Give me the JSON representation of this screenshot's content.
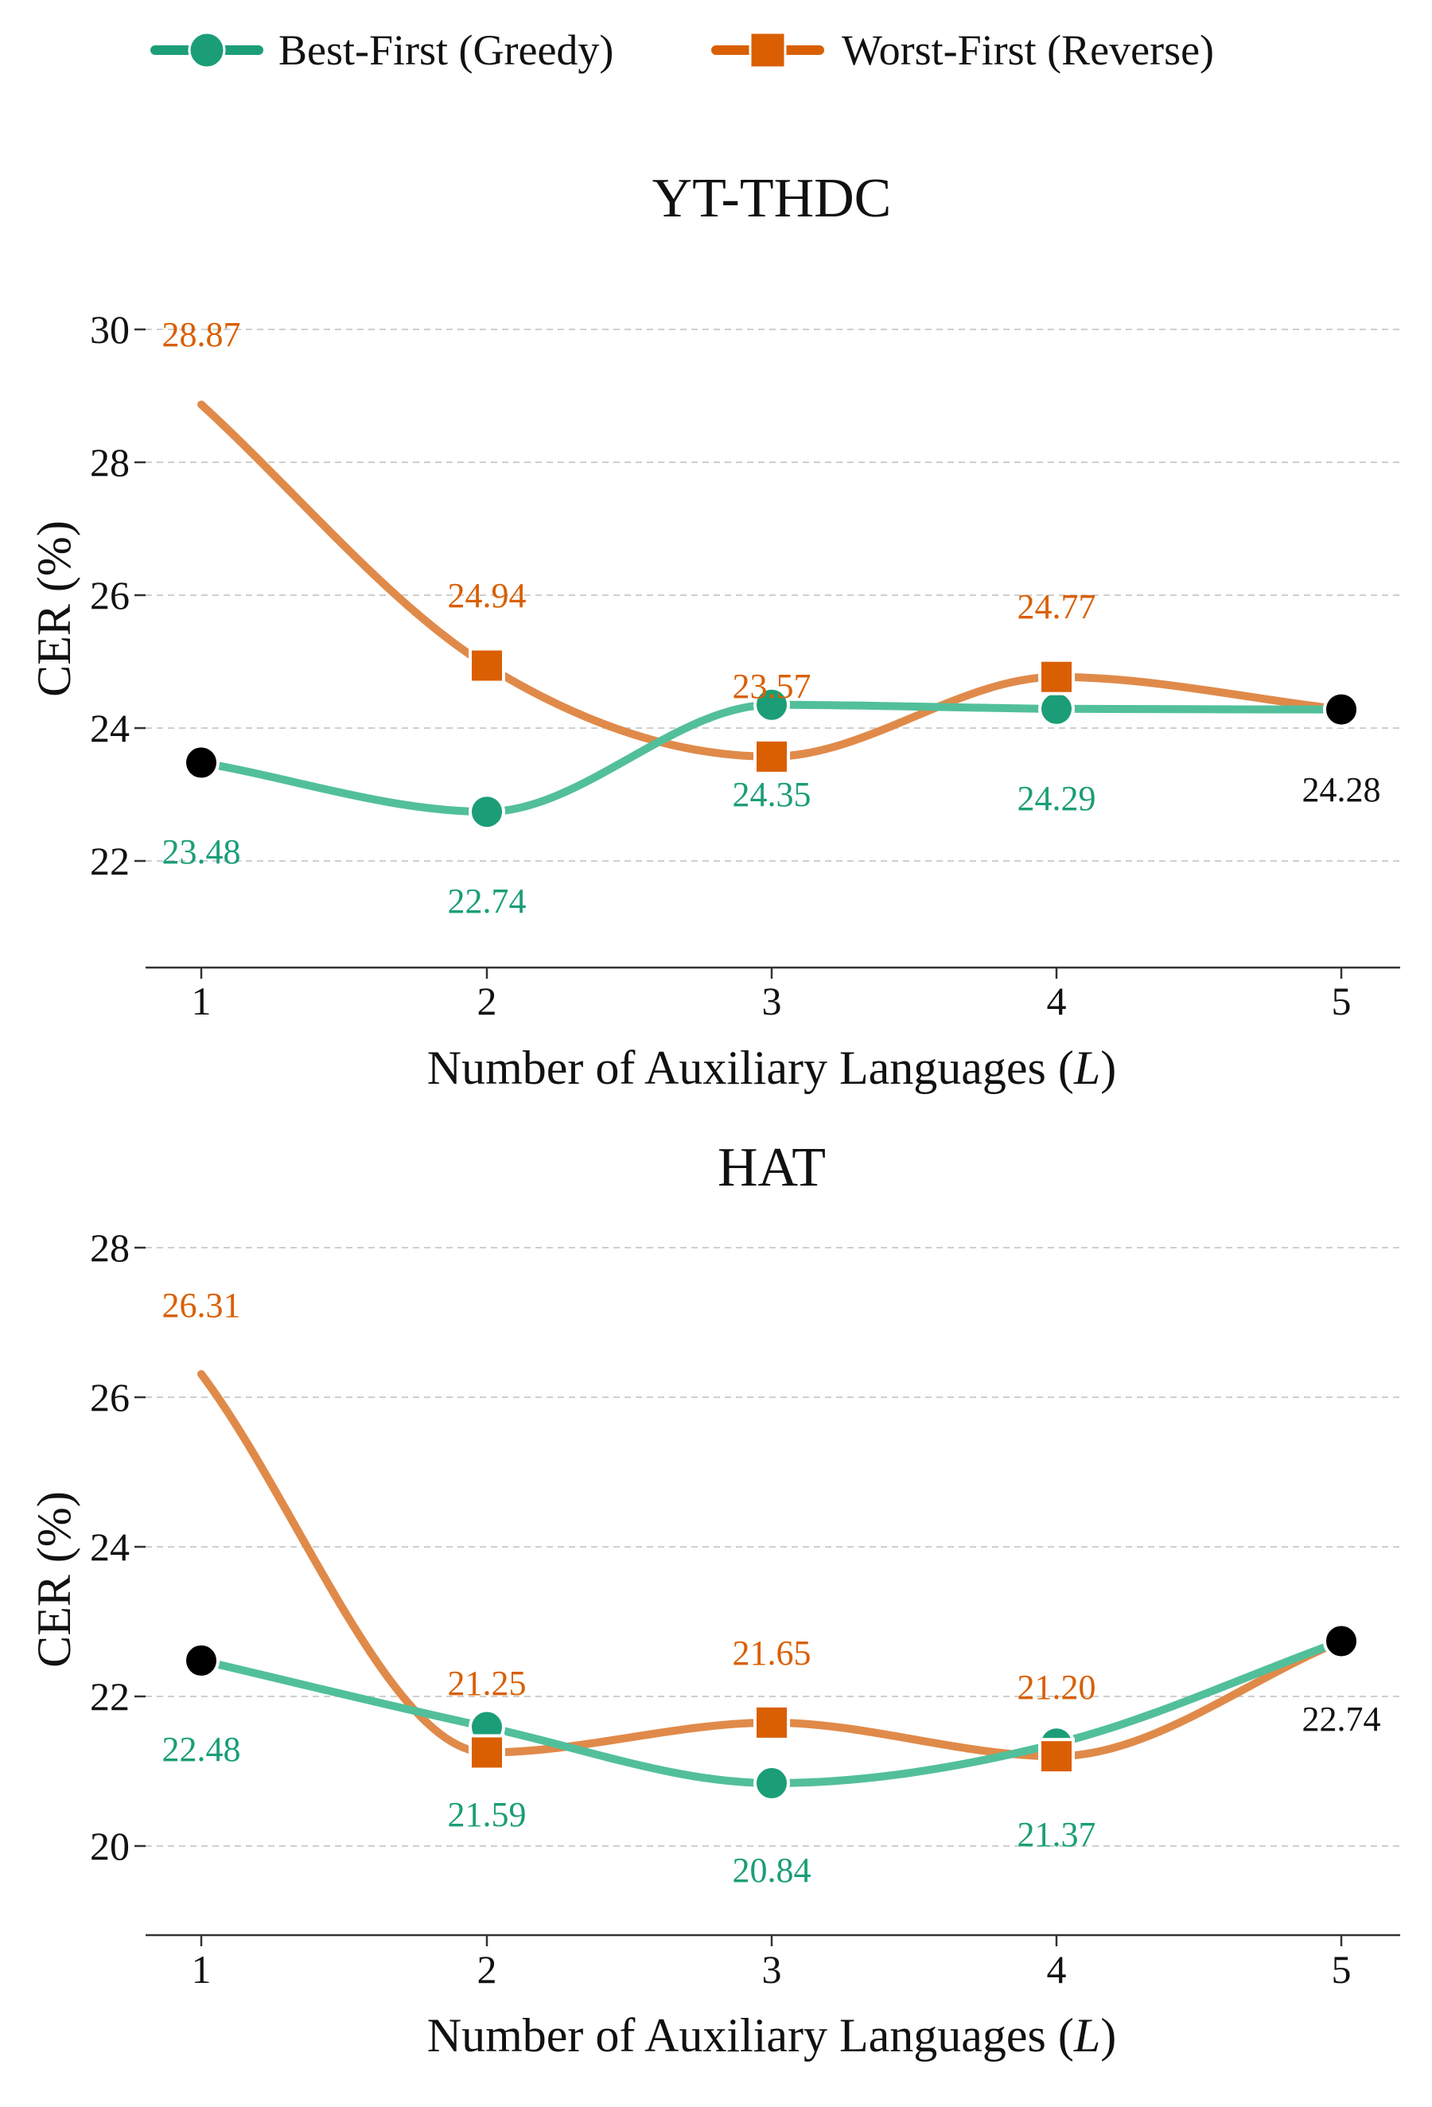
{
  "legend": {
    "position": "top-center",
    "items": [
      {
        "label": "Best-First (Greedy)",
        "marker": "circle",
        "color": "#1b9e77"
      },
      {
        "label": "Worst-First (Reverse)",
        "marker": "square",
        "color": "#d95f02"
      }
    ]
  },
  "colors": {
    "best_line": "#52bf9b",
    "best_text": "#1b9e77",
    "worst_line": "#e08a4a",
    "worst_text": "#d95f02",
    "endpoint": "#000000"
  },
  "chart_data": [
    {
      "type": "line",
      "title": "YT-THDC",
      "xlabel": "Number of Auxiliary Languages (L)",
      "ylabel": "CER (%)",
      "x": [
        1,
        2,
        3,
        4,
        5
      ],
      "xticks": [
        "1",
        "2",
        "3",
        "4",
        "5"
      ],
      "yticks": [
        22,
        24,
        26,
        28,
        30
      ],
      "ylim": [
        20.4,
        30
      ],
      "grid": "horizontal dashed",
      "series": [
        {
          "name": "Best-First (Greedy)",
          "values": [
            23.48,
            22.74,
            24.35,
            24.29,
            24.28
          ],
          "labels": [
            "23.48",
            "22.74",
            "24.35",
            "24.29",
            "24.28"
          ]
        },
        {
          "name": "Worst-First (Reverse)",
          "values": [
            28.87,
            24.94,
            23.57,
            24.77,
            24.28
          ],
          "labels": [
            "28.87",
            "24.94",
            "23.57",
            "24.77",
            ""
          ]
        }
      ]
    },
    {
      "type": "line",
      "title": "HAT",
      "xlabel": "Number of Auxiliary Languages (L)",
      "ylabel": "CER (%)",
      "x": [
        1,
        2,
        3,
        4,
        5
      ],
      "xticks": [
        "1",
        "2",
        "3",
        "4",
        "5"
      ],
      "yticks": [
        20,
        22,
        24,
        26,
        28
      ],
      "ylim": [
        18.8,
        28
      ],
      "grid": "horizontal dashed",
      "series": [
        {
          "name": "Best-First (Greedy)",
          "values": [
            22.48,
            21.59,
            20.84,
            21.37,
            22.74
          ],
          "labels": [
            "22.48",
            "21.59",
            "20.84",
            "21.37",
            "22.74"
          ]
        },
        {
          "name": "Worst-First (Reverse)",
          "values": [
            26.31,
            21.25,
            21.65,
            21.2,
            22.74
          ],
          "labels": [
            "26.31",
            "21.25",
            "21.65",
            "21.20",
            ""
          ]
        }
      ]
    }
  ]
}
